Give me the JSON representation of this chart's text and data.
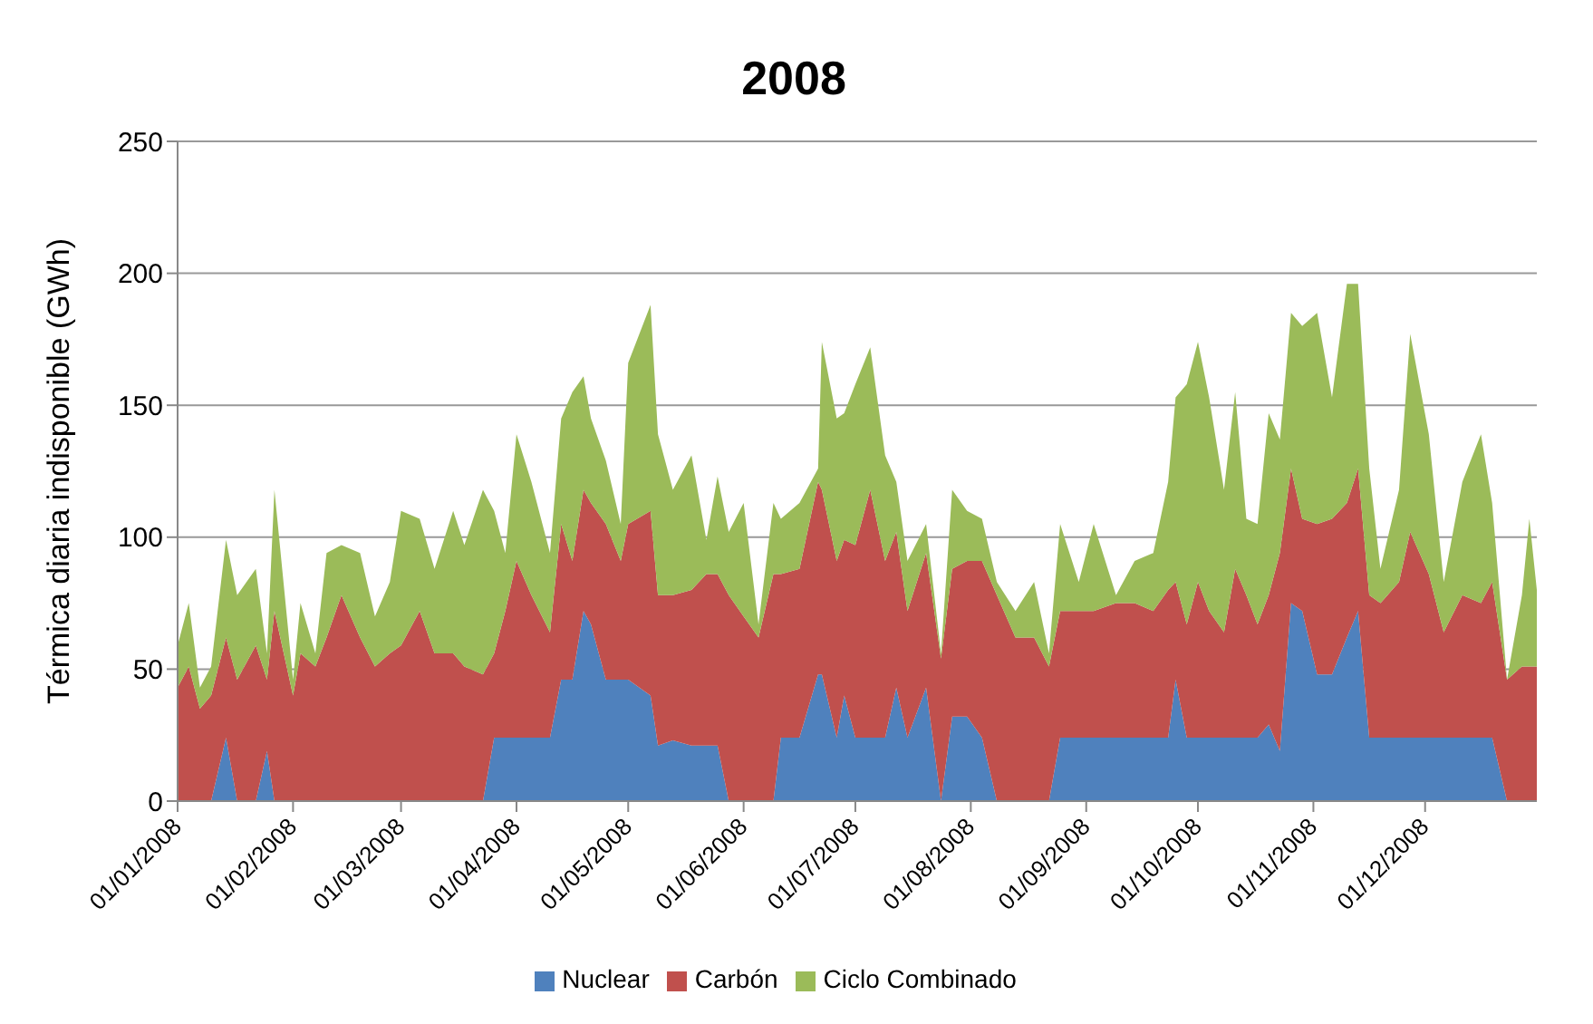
{
  "chart_data": {
    "type": "area",
    "title": "2008",
    "ylabel": "Térmica diaria indisponible (GWh)",
    "stacked": true,
    "grid": "y",
    "legend": "bottom",
    "marker": "none",
    "x": [
      "2008-01-01",
      "2008-01-04",
      "2008-01-07",
      "2008-01-10",
      "2008-01-14",
      "2008-01-17",
      "2008-01-22",
      "2008-01-25",
      "2008-01-27",
      "2008-02-01",
      "2008-02-03",
      "2008-02-07",
      "2008-02-10",
      "2008-02-14",
      "2008-02-19",
      "2008-02-23",
      "2008-02-27",
      "2008-03-01",
      "2008-03-06",
      "2008-03-10",
      "2008-03-15",
      "2008-03-18",
      "2008-03-23",
      "2008-03-26",
      "2008-03-29",
      "2008-04-01",
      "2008-04-05",
      "2008-04-10",
      "2008-04-13",
      "2008-04-16",
      "2008-04-19",
      "2008-04-21",
      "2008-04-25",
      "2008-04-29",
      "2008-05-01",
      "2008-05-07",
      "2008-05-09",
      "2008-05-13",
      "2008-05-18",
      "2008-05-22",
      "2008-05-25",
      "2008-05-28",
      "2008-06-01",
      "2008-06-05",
      "2008-06-09",
      "2008-06-11",
      "2008-06-16",
      "2008-06-21",
      "2008-06-22",
      "2008-06-26",
      "2008-06-28",
      "2008-07-01",
      "2008-07-05",
      "2008-07-09",
      "2008-07-12",
      "2008-07-15",
      "2008-07-20",
      "2008-07-24",
      "2008-07-27",
      "2008-07-31",
      "2008-08-04",
      "2008-08-08",
      "2008-08-13",
      "2008-08-18",
      "2008-08-22",
      "2008-08-25",
      "2008-08-30",
      "2008-09-03",
      "2008-09-09",
      "2008-09-14",
      "2008-09-19",
      "2008-09-23",
      "2008-09-25",
      "2008-09-28",
      "2008-10-01",
      "2008-10-04",
      "2008-10-08",
      "2008-10-11",
      "2008-10-14",
      "2008-10-17",
      "2008-10-20",
      "2008-10-23",
      "2008-10-26",
      "2008-10-29",
      "2008-11-02",
      "2008-11-06",
      "2008-11-10",
      "2008-11-13",
      "2008-11-16",
      "2008-11-19",
      "2008-11-24",
      "2008-11-27",
      "2008-12-02",
      "2008-12-06",
      "2008-12-11",
      "2008-12-16",
      "2008-12-19",
      "2008-12-23",
      "2008-12-27",
      "2008-12-29",
      "2008-12-31"
    ],
    "series": [
      {
        "name": "Nuclear",
        "color": "#4f81bd",
        "values": [
          0,
          0,
          0,
          0,
          24,
          0,
          0,
          19,
          0,
          0,
          0,
          0,
          0,
          0,
          0,
          0,
          0,
          0,
          0,
          0,
          0,
          0,
          0,
          24,
          24,
          24,
          24,
          24,
          46,
          46,
          72,
          67,
          46,
          46,
          46,
          40,
          21,
          23,
          21,
          21,
          21,
          0,
          0,
          0,
          0,
          24,
          24,
          48,
          48,
          24,
          40,
          24,
          24,
          24,
          43,
          24,
          43,
          0,
          32,
          32,
          24,
          0,
          0,
          0,
          0,
          24,
          24,
          24,
          24,
          24,
          24,
          24,
          46,
          24,
          24,
          24,
          24,
          24,
          24,
          24,
          29,
          19,
          75,
          72,
          48,
          48,
          62,
          72,
          24,
          24,
          24,
          24,
          24,
          24,
          24,
          24,
          24,
          0,
          0,
          0,
          0
        ]
      },
      {
        "name": "Carbón",
        "color": "#c0504d",
        "values": [
          43,
          51,
          35,
          40,
          38,
          46,
          59,
          27,
          72,
          40,
          56,
          51,
          62,
          78,
          62,
          51,
          56,
          59,
          72,
          56,
          56,
          51,
          48,
          32,
          48,
          67,
          54,
          40,
          59,
          45,
          46,
          46,
          59,
          45,
          59,
          70,
          57,
          55,
          59,
          65,
          65,
          78,
          70,
          62,
          86,
          62,
          64,
          73,
          70,
          67,
          59,
          73,
          94,
          67,
          59,
          48,
          51,
          54,
          56,
          59,
          67,
          78,
          62,
          62,
          51,
          48,
          48,
          48,
          51,
          51,
          48,
          56,
          37,
          43,
          59,
          48,
          40,
          64,
          54,
          43,
          49,
          75,
          51,
          35,
          57,
          59,
          51,
          54,
          54,
          51,
          59,
          78,
          62,
          40,
          54,
          51,
          59,
          46,
          51,
          51,
          51
        ]
      },
      {
        "name": "Ciclo Combinado",
        "color": "#9bbb59",
        "values": [
          16,
          24,
          8,
          11,
          37,
          32,
          29,
          10,
          46,
          6,
          19,
          5,
          32,
          19,
          32,
          19,
          27,
          51,
          35,
          32,
          54,
          46,
          70,
          54,
          22,
          48,
          43,
          30,
          40,
          64,
          43,
          32,
          24,
          14,
          61,
          78,
          61,
          40,
          51,
          13,
          37,
          24,
          43,
          5,
          27,
          21,
          25,
          5,
          56,
          54,
          48,
          61,
          54,
          40,
          19,
          19,
          11,
          2,
          30,
          19,
          16,
          5,
          10,
          21,
          5,
          33,
          11,
          33,
          3,
          16,
          22,
          41,
          70,
          91,
          91,
          81,
          54,
          67,
          29,
          38,
          69,
          43,
          59,
          73,
          80,
          46,
          83,
          70,
          48,
          13,
          35,
          75,
          53,
          19,
          43,
          64,
          30,
          0,
          27,
          56,
          29
        ]
      }
    ],
    "xlim": [
      "2008-01-01",
      "2008-12-31"
    ],
    "xticks": [
      {
        "value": "2008-01-01",
        "label": "01/01/2008"
      },
      {
        "value": "2008-02-01",
        "label": "01/02/2008"
      },
      {
        "value": "2008-03-01",
        "label": "01/03/2008"
      },
      {
        "value": "2008-04-01",
        "label": "01/04/2008"
      },
      {
        "value": "2008-05-01",
        "label": "01/05/2008"
      },
      {
        "value": "2008-06-01",
        "label": "01/06/2008"
      },
      {
        "value": "2008-07-01",
        "label": "01/07/2008"
      },
      {
        "value": "2008-08-01",
        "label": "01/08/2008"
      },
      {
        "value": "2008-09-01",
        "label": "01/09/2008"
      },
      {
        "value": "2008-10-01",
        "label": "01/10/2008"
      },
      {
        "value": "2008-11-01",
        "label": "01/11/2008"
      },
      {
        "value": "2008-12-01",
        "label": "01/12/2008"
      }
    ],
    "ylim": [
      0,
      250
    ],
    "yticks": [
      0,
      50,
      100,
      150,
      200,
      250
    ]
  }
}
